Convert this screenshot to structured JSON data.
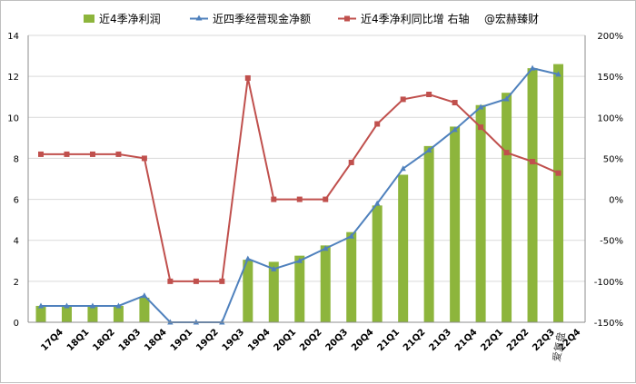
{
  "chart_data": {
    "type": "bar+line",
    "categories": [
      "17Q4",
      "18Q1",
      "18Q2",
      "18Q3",
      "18Q4",
      "19Q1",
      "19Q2",
      "19Q3",
      "19Q4",
      "20Q1",
      "20Q2",
      "20Q3",
      "20Q4",
      "21Q1",
      "21Q2",
      "21Q3",
      "21Q4",
      "22Q1",
      "22Q2",
      "22Q3",
      "22Q4"
    ],
    "series": [
      {
        "name": "近4季净利润",
        "kind": "bar",
        "axis": "left",
        "color": "#8db53c",
        "values": [
          0.8,
          0.8,
          0.8,
          0.8,
          1.2,
          0,
          0,
          0,
          3.05,
          2.95,
          3.25,
          3.75,
          4.4,
          5.7,
          7.2,
          8.6,
          9.55,
          10.6,
          11.2,
          12.4,
          12.6
        ]
      },
      {
        "name": "近四季经营现金净额",
        "kind": "line",
        "axis": "left",
        "color": "#4f81bd",
        "values": [
          0.8,
          0.8,
          0.8,
          0.8,
          1.3,
          0,
          0,
          0,
          3.1,
          2.6,
          3.0,
          3.6,
          4.2,
          5.8,
          7.5,
          8.4,
          9.4,
          10.5,
          10.9,
          12.4,
          12.1
        ]
      },
      {
        "name": "近4季净利同比增 右轴",
        "kind": "line",
        "axis": "right",
        "color": "#c0504d",
        "values": [
          55,
          55,
          55,
          55,
          50,
          -100,
          -100,
          -100,
          148,
          0,
          0,
          0,
          45,
          92,
          122,
          128,
          118,
          88,
          57,
          46,
          32
        ]
      }
    ],
    "left_axis": {
      "ylim": [
        0,
        14
      ],
      "ticks": [
        "0",
        "2",
        "4",
        "6",
        "8",
        "10",
        "12",
        "14"
      ]
    },
    "right_axis": {
      "ylim": [
        -150,
        200
      ],
      "ticks": [
        "-150%",
        "-100%",
        "-50%",
        "0%",
        "50%",
        "100%",
        "150%",
        "200%"
      ]
    },
    "grid": "horizontal",
    "legend_position": "top"
  },
  "legend": {
    "watermark": "@宏赫臻财"
  },
  "watermark_bottom": "爱复盘"
}
